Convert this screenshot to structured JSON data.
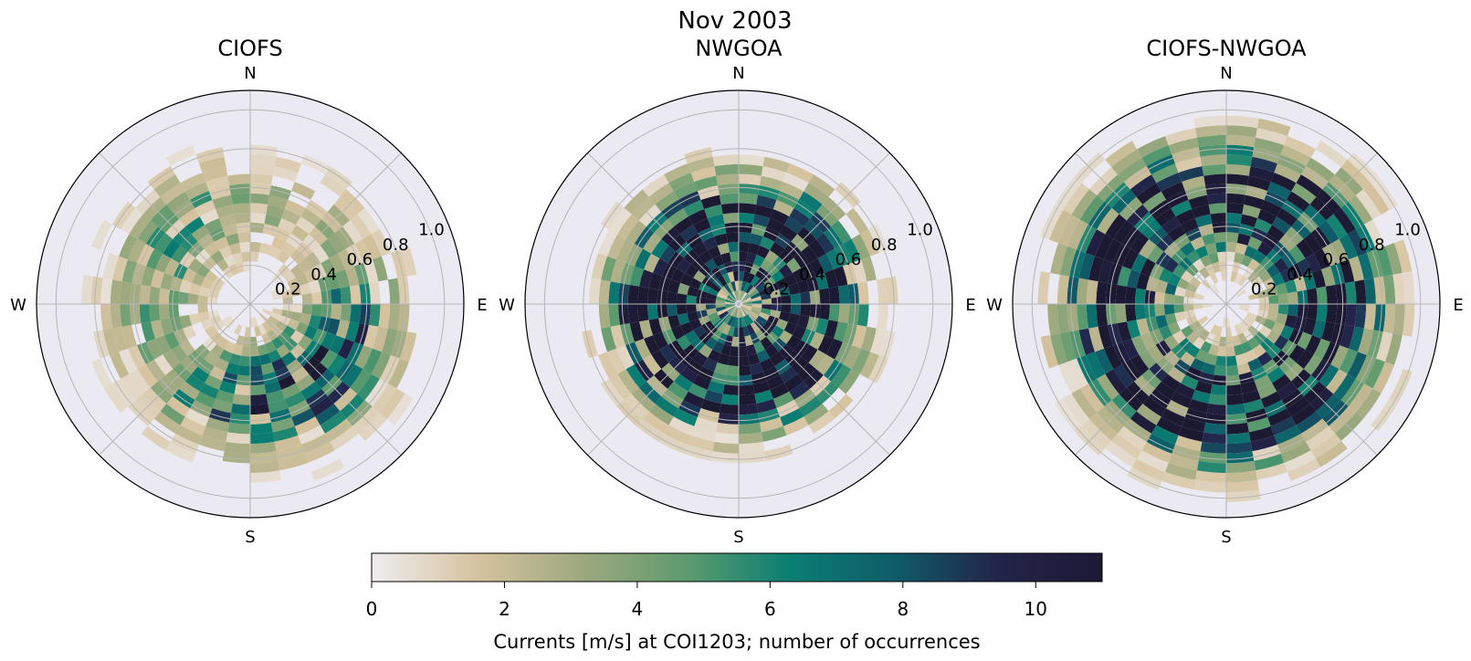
{
  "figure": {
    "title": "Nov 2003",
    "colorbar": {
      "label": "Currents [m/s] at COI1203; number of occurrences",
      "ticks": [
        "0",
        "2",
        "4",
        "6",
        "8",
        "10"
      ],
      "range": [
        0,
        11
      ],
      "colors": [
        "#efedf0",
        "#d6c39f",
        "#9fa97f",
        "#5e9b6e",
        "#0b7f72",
        "#0f5c69",
        "#23244a",
        "#1c1933"
      ]
    }
  },
  "chart_data": [
    {
      "type": "polar-histogram",
      "title": "CIOFS",
      "directions": [
        "N",
        "E",
        "S",
        "W"
      ],
      "r_tick_labels": [
        "0.2",
        "0.4",
        "0.6",
        "0.8",
        "1.0"
      ],
      "r_range": [
        0,
        1.1
      ],
      "sector_width_deg": 10,
      "speed_bin_width": 0.05,
      "angular_spread_deg": 80,
      "peak_speed": 0.5,
      "dominant_direction_deg": 145,
      "peak_count": 10,
      "secondary": {
        "direction_deg": 315,
        "peak_count": 6
      },
      "seed": 11
    },
    {
      "type": "polar-histogram",
      "title": "NWGOA",
      "directions": [
        "N",
        "E",
        "S",
        "W"
      ],
      "r_tick_labels": [
        "0.2",
        "0.4",
        "0.6",
        "0.8",
        "1.0"
      ],
      "r_range": [
        0,
        1.1
      ],
      "sector_width_deg": 10,
      "speed_bin_width": 0.05,
      "angular_spread_deg": 360,
      "peak_speed": 0.35,
      "dominant_direction_deg": 300,
      "peak_count": 10,
      "secondary": {
        "direction_deg": 150,
        "peak_count": 8
      },
      "seed": 23
    },
    {
      "type": "polar-histogram",
      "title": "CIOFS-NWGOA",
      "directions": [
        "N",
        "E",
        "S",
        "W"
      ],
      "r_tick_labels": [
        "0.2",
        "0.4",
        "0.6",
        "0.8",
        "1.0"
      ],
      "r_range": [
        0,
        1.1
      ],
      "sector_width_deg": 10,
      "speed_bin_width": 0.05,
      "angular_spread_deg": 360,
      "peak_speed": 0.55,
      "dominant_direction_deg": 155,
      "peak_count": 9,
      "secondary": {
        "direction_deg": 340,
        "peak_count": 6
      },
      "seed": 37
    }
  ]
}
